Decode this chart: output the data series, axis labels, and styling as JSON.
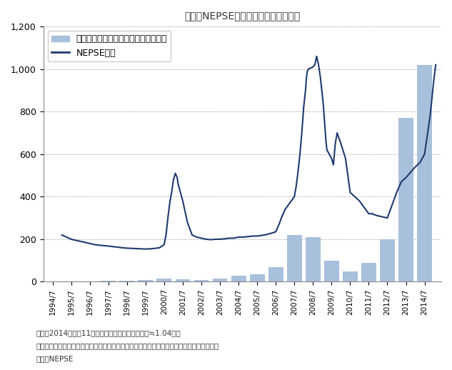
{
  "title": "図表：NEPSEにおける売買代金の推移",
  "note1": "注１：2014年８月11日現在、１ネパール・ルピー≒1.04円。",
  "note2": "注２：各年の年間売買代金は、ネパールの会計年度（７月中旬～翌年７月中旬）に基づく。",
  "source": "出所：NEPSE",
  "bar_color": "#a8c0dc",
  "line_color": "#1f3a6e",
  "ylim": [
    0,
    1200
  ],
  "yticks": [
    0,
    200,
    400,
    600,
    800,
    1000,
    1200
  ],
  "bar_years": [
    1994,
    1995,
    1996,
    1997,
    1998,
    1999,
    2000,
    2001,
    2002,
    2003,
    2004,
    2005,
    2006,
    2007,
    2008,
    2009,
    2010,
    2011,
    2012,
    2013,
    2014
  ],
  "bar_values": [
    2,
    2,
    3,
    5,
    5,
    10,
    15,
    12,
    10,
    15,
    30,
    35,
    70,
    220,
    210,
    100,
    50,
    90,
    200,
    770,
    1020
  ],
  "nepse_dates": [
    1994.5,
    1994.75,
    1995.0,
    1995.25,
    1995.5,
    1995.75,
    1996.0,
    1996.25,
    1996.5,
    1996.75,
    1997.0,
    1997.25,
    1997.5,
    1997.75,
    1998.0,
    1998.25,
    1998.5,
    1998.75,
    1999.0,
    1999.25,
    1999.5,
    1999.75,
    2000.0,
    2000.1,
    2000.2,
    2000.3,
    2000.4,
    2000.5,
    2000.6,
    2000.7,
    2000.75,
    2001.0,
    2001.25,
    2001.5,
    2001.75,
    2002.0,
    2002.25,
    2002.5,
    2002.75,
    2003.0,
    2003.25,
    2003.5,
    2003.75,
    2004.0,
    2004.25,
    2004.5,
    2004.75,
    2005.0,
    2005.25,
    2005.5,
    2005.75,
    2006.0,
    2006.1,
    2006.2,
    2006.3,
    2006.5,
    2006.75,
    2007.0,
    2007.1,
    2007.2,
    2007.3,
    2007.4,
    2007.5,
    2007.6,
    2007.65,
    2007.7,
    2007.75,
    2008.0,
    2008.1,
    2008.2,
    2008.3,
    2008.4,
    2008.5,
    2008.55,
    2008.6,
    2008.65,
    2008.7,
    2008.75,
    2009.0,
    2009.1,
    2009.2,
    2009.3,
    2009.5,
    2009.75,
    2010.0,
    2010.25,
    2010.5,
    2010.75,
    2011.0,
    2011.1,
    2011.2,
    2011.3,
    2011.5,
    2011.75,
    2012.0,
    2012.25,
    2012.5,
    2012.75,
    2013.0,
    2013.1,
    2013.2,
    2013.3,
    2013.5,
    2013.75,
    2014.0,
    2014.1,
    2014.2,
    2014.3,
    2014.5,
    2014.6
  ],
  "nepse_values": [
    220,
    210,
    200,
    195,
    190,
    185,
    180,
    175,
    172,
    170,
    168,
    165,
    163,
    160,
    158,
    157,
    156,
    155,
    154,
    155,
    157,
    160,
    175,
    220,
    300,
    370,
    420,
    480,
    510,
    490,
    460,
    380,
    280,
    220,
    210,
    205,
    200,
    198,
    200,
    200,
    202,
    205,
    205,
    210,
    210,
    212,
    215,
    215,
    218,
    222,
    228,
    235,
    255,
    275,
    300,
    340,
    370,
    400,
    450,
    520,
    600,
    700,
    820,
    900,
    960,
    990,
    1000,
    1010,
    1020,
    1060,
    1020,
    960,
    880,
    840,
    780,
    720,
    660,
    620,
    580,
    550,
    650,
    700,
    650,
    580,
    420,
    400,
    380,
    350,
    320,
    320,
    320,
    315,
    310,
    305,
    300,
    360,
    420,
    470,
    490,
    500,
    510,
    520,
    540,
    560,
    600,
    660,
    720,
    780,
    950,
    1020
  ],
  "xtick_labels": [
    "1994/7",
    "1995/7",
    "1996/7",
    "1997/7",
    "1998/7",
    "1999/7",
    "2000/7",
    "2001/7",
    "2002/7",
    "2003/7",
    "2004/7",
    "2005/7",
    "2006/7",
    "2007/7",
    "2008/7",
    "2009/7",
    "2010/7",
    "2011/7",
    "2012/7",
    "2013/7",
    "2014/7"
  ],
  "xtick_positions": [
    1994,
    1995,
    1996,
    1997,
    1998,
    1999,
    2000,
    2001,
    2002,
    2003,
    2004,
    2005,
    2006,
    2007,
    2008,
    2009,
    2010,
    2011,
    2012,
    2013,
    2014
  ],
  "legend_bar_label": "年間売買代金（億ネパール・ルピー）",
  "legend_line_label": "NEPSE指数",
  "background_color": "#ffffff",
  "plot_bg_color": "#ffffff"
}
